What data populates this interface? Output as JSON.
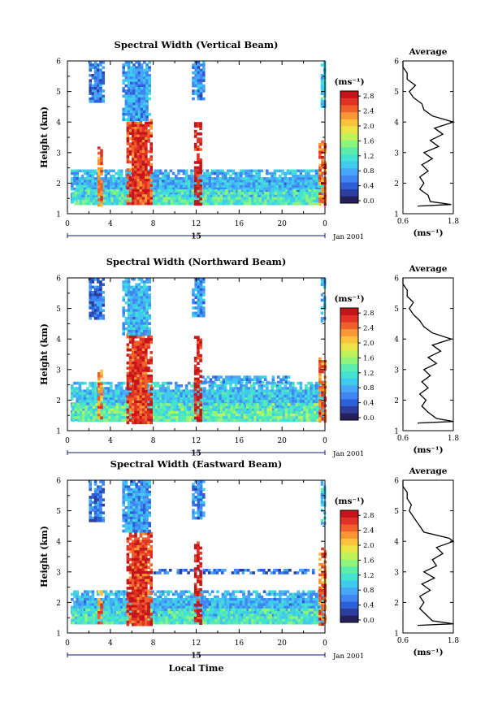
{
  "chart_data": [
    {
      "type": "heatmap",
      "title": "Spectral Width (Vertical Beam)",
      "ylabel": "Height (km)",
      "xlabel": "",
      "date_label": "15",
      "date_suffix": "Jan 2001",
      "ylim": [
        1,
        6
      ],
      "xlim": [
        0,
        24
      ],
      "xticks": [
        "0",
        "4",
        "8",
        "12",
        "16",
        "20",
        "0"
      ],
      "yticks": [
        "1",
        "2",
        "3",
        "4",
        "5",
        "6"
      ],
      "colorbar_unit": "(ms⁻¹)",
      "colorbar_ticks": [
        "0.0",
        "0.4",
        "0.8",
        "1.2",
        "1.6",
        "2.0",
        "2.4",
        "2.8"
      ],
      "colorbar_range": [
        0,
        3.0
      ],
      "bands": [
        {
          "x0": 0.3,
          "x1": 24.0,
          "y0": 1.35,
          "y1": 2.45,
          "level": 0.9
        },
        {
          "x0": 0.4,
          "x1": 23.5,
          "y0": 1.35,
          "y1": 1.8,
          "level": 1.3
        },
        {
          "x0": 5.5,
          "x1": 7.7,
          "y0": 1.3,
          "y1": 4.1,
          "level": 2.7
        },
        {
          "x0": 5.1,
          "x1": 7.7,
          "y0": 4.1,
          "y1": 6.0,
          "level": 0.8
        },
        {
          "x0": 2.0,
          "x1": 3.4,
          "y0": 4.7,
          "y1": 6.0,
          "level": 0.6
        },
        {
          "x0": 11.6,
          "x1": 12.7,
          "y0": 4.8,
          "y1": 6.0,
          "level": 0.7
        },
        {
          "x0": 11.8,
          "x1": 12.4,
          "y0": 1.3,
          "y1": 4.0,
          "level": 2.9
        },
        {
          "x0": 2.8,
          "x1": 3.2,
          "y0": 1.3,
          "y1": 3.2,
          "level": 2.5
        },
        {
          "x0": 23.4,
          "x1": 24.0,
          "y0": 1.3,
          "y1": 3.4,
          "level": 2.5
        },
        {
          "x0": 23.6,
          "x1": 24.0,
          "y0": 4.5,
          "y1": 6.0,
          "level": 1.0
        }
      ],
      "average_profile": {
        "title": "Average",
        "xlabel": "(ms⁻¹)",
        "xlim": [
          0.6,
          1.8
        ],
        "xticks": [
          "0.6",
          "1.8"
        ],
        "yticks": [
          "1",
          "2",
          "3",
          "4",
          "5",
          "6"
        ],
        "height": [
          1.25,
          1.3,
          1.4,
          1.6,
          1.8,
          2.0,
          2.2,
          2.4,
          2.6,
          2.8,
          3.0,
          3.2,
          3.4,
          3.6,
          3.8,
          4.0,
          4.2,
          4.4,
          4.6,
          4.8,
          5.0,
          5.2,
          5.4,
          5.6,
          5.8,
          6.0
        ],
        "value": [
          0.95,
          1.75,
          1.25,
          1.2,
          1.0,
          1.1,
          1.0,
          1.2,
          1.05,
          1.3,
          1.1,
          1.45,
          1.25,
          1.55,
          1.35,
          1.8,
          1.3,
          1.1,
          1.05,
          0.85,
          0.75,
          0.9,
          0.7,
          0.7,
          0.6,
          0.6
        ]
      }
    },
    {
      "type": "heatmap",
      "title": "Spectral Width (Northward Beam)",
      "ylabel": "Height (km)",
      "xlabel": "",
      "date_label": "15",
      "date_suffix": "Jan 2001",
      "ylim": [
        1,
        6
      ],
      "xlim": [
        0,
        24
      ],
      "xticks": [
        "0",
        "4",
        "8",
        "12",
        "16",
        "20",
        "0"
      ],
      "yticks": [
        "1",
        "2",
        "3",
        "4",
        "5",
        "6"
      ],
      "colorbar_unit": "(ms⁻¹)",
      "colorbar_ticks": [
        "0.0",
        "0.4",
        "0.8",
        "1.2",
        "1.6",
        "2.0",
        "2.4",
        "2.8"
      ],
      "colorbar_range": [
        0,
        3.0
      ],
      "bands": [
        {
          "x0": 0.3,
          "x1": 24.0,
          "y0": 1.35,
          "y1": 2.6,
          "level": 1.0
        },
        {
          "x0": 0.4,
          "x1": 23.5,
          "y0": 1.35,
          "y1": 1.9,
          "level": 1.4
        },
        {
          "x0": 12.5,
          "x1": 20.5,
          "y0": 2.6,
          "y1": 2.8,
          "level": 0.8
        },
        {
          "x0": 5.5,
          "x1": 7.7,
          "y0": 1.3,
          "y1": 4.2,
          "level": 2.7
        },
        {
          "x0": 5.1,
          "x1": 7.7,
          "y0": 4.2,
          "y1": 6.0,
          "level": 0.9
        },
        {
          "x0": 2.0,
          "x1": 3.4,
          "y0": 4.7,
          "y1": 6.0,
          "level": 0.6
        },
        {
          "x0": 11.6,
          "x1": 12.7,
          "y0": 4.8,
          "y1": 6.0,
          "level": 0.7
        },
        {
          "x0": 11.8,
          "x1": 12.4,
          "y0": 1.3,
          "y1": 4.1,
          "level": 2.9
        },
        {
          "x0": 2.8,
          "x1": 3.2,
          "y0": 1.3,
          "y1": 3.0,
          "level": 2.4
        },
        {
          "x0": 23.4,
          "x1": 24.0,
          "y0": 1.3,
          "y1": 3.4,
          "level": 2.5
        },
        {
          "x0": 23.6,
          "x1": 24.0,
          "y0": 4.6,
          "y1": 6.0,
          "level": 1.0
        }
      ],
      "average_profile": {
        "title": "Average",
        "xlabel": "(ms⁻¹)",
        "xlim": [
          0.6,
          1.8
        ],
        "xticks": [
          "0.6",
          "1.8"
        ],
        "yticks": [
          "1",
          "2",
          "3",
          "4",
          "5",
          "6"
        ],
        "height": [
          1.25,
          1.3,
          1.4,
          1.6,
          1.8,
          2.0,
          2.2,
          2.4,
          2.6,
          2.8,
          3.0,
          3.2,
          3.4,
          3.6,
          3.8,
          4.0,
          4.2,
          4.4,
          4.6,
          4.8,
          5.0,
          5.2,
          5.4,
          5.6,
          5.8,
          6.0
        ],
        "value": [
          0.95,
          1.8,
          1.4,
          1.2,
          1.05,
          1.15,
          1.0,
          1.2,
          1.05,
          1.25,
          1.1,
          1.4,
          1.2,
          1.5,
          1.3,
          1.75,
          1.3,
          1.1,
          1.0,
          0.85,
          0.75,
          0.85,
          0.7,
          0.7,
          0.6,
          0.6
        ]
      }
    },
    {
      "type": "heatmap",
      "title": "Spectral Width (Eastward Beam)",
      "ylabel": "Height (km)",
      "xlabel": "Local Time",
      "date_label": "15",
      "date_suffix": "Jan 2001",
      "ylim": [
        1,
        6
      ],
      "xlim": [
        0,
        24
      ],
      "xticks": [
        "0",
        "4",
        "8",
        "12",
        "16",
        "20",
        "0"
      ],
      "yticks": [
        "1",
        "2",
        "3",
        "4",
        "5",
        "6"
      ],
      "colorbar_unit": "(ms⁻¹)",
      "colorbar_ticks": [
        "0.0",
        "0.4",
        "0.8",
        "1.2",
        "1.6",
        "2.0",
        "2.4",
        "2.8"
      ],
      "colorbar_range": [
        0,
        3.0
      ],
      "bands": [
        {
          "x0": 0.3,
          "x1": 24.0,
          "y0": 1.35,
          "y1": 2.4,
          "level": 0.9
        },
        {
          "x0": 0.4,
          "x1": 23.5,
          "y0": 1.35,
          "y1": 1.8,
          "level": 1.3
        },
        {
          "x0": 8.0,
          "x1": 23.0,
          "y0": 2.95,
          "y1": 3.1,
          "level": 0.6
        },
        {
          "x0": 5.5,
          "x1": 7.7,
          "y0": 1.3,
          "y1": 4.3,
          "level": 2.7
        },
        {
          "x0": 5.1,
          "x1": 7.7,
          "y0": 4.3,
          "y1": 6.0,
          "level": 0.8
        },
        {
          "x0": 2.0,
          "x1": 3.4,
          "y0": 4.7,
          "y1": 6.0,
          "level": 0.6
        },
        {
          "x0": 11.6,
          "x1": 12.7,
          "y0": 4.8,
          "y1": 6.0,
          "level": 0.7
        },
        {
          "x0": 11.8,
          "x1": 12.4,
          "y0": 1.3,
          "y1": 4.0,
          "level": 2.9
        },
        {
          "x0": 2.8,
          "x1": 3.2,
          "y0": 1.3,
          "y1": 2.4,
          "level": 2.4
        },
        {
          "x0": 23.4,
          "x1": 24.0,
          "y0": 1.3,
          "y1": 3.8,
          "level": 2.5
        },
        {
          "x0": 23.6,
          "x1": 24.0,
          "y0": 4.6,
          "y1": 6.0,
          "level": 1.0
        }
      ],
      "average_profile": {
        "title": "Average",
        "xlabel": "(ms⁻¹)",
        "xlim": [
          0.6,
          1.8
        ],
        "xticks": [
          "0.6",
          "1.8"
        ],
        "yticks": [
          "1",
          "2",
          "3",
          "4",
          "5",
          "6"
        ],
        "height": [
          1.25,
          1.3,
          1.4,
          1.6,
          1.8,
          2.0,
          2.2,
          2.4,
          2.6,
          2.8,
          3.0,
          3.2,
          3.4,
          3.6,
          3.8,
          4.0,
          4.1,
          4.3,
          4.5,
          4.8,
          5.0,
          5.2,
          5.4,
          5.6,
          5.8,
          6.0
        ],
        "value": [
          0.95,
          1.8,
          1.3,
          1.15,
          1.0,
          1.1,
          1.0,
          1.25,
          1.05,
          1.35,
          1.1,
          1.4,
          1.3,
          1.55,
          1.4,
          1.8,
          1.7,
          1.1,
          1.0,
          0.85,
          0.75,
          0.8,
          0.7,
          0.7,
          0.6,
          0.6
        ]
      }
    }
  ]
}
